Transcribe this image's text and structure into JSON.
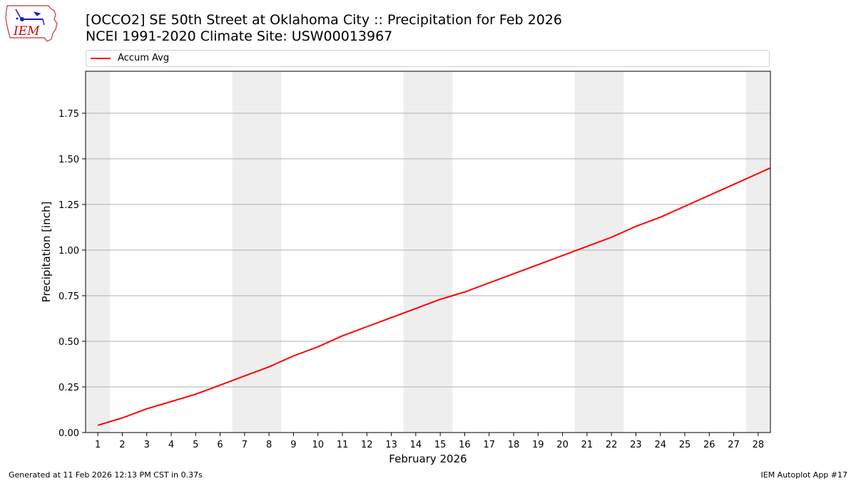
{
  "header": {
    "title_line1": "[OCCO2] SE 50th Street at Oklahoma City :: Precipitation for Feb 2026",
    "title_line2": "NCEI 1991-2020 Climate Site: USW00013967",
    "logo_text": "IEM"
  },
  "footer": {
    "left": "Generated at 11 Feb 2026 12:13 PM CST in 0.37s",
    "right": "IEM Autoplot App #17"
  },
  "chart_data": {
    "type": "line",
    "xlabel": "February 2026",
    "ylabel": "Precipitation [inch]",
    "xlim": [
      0.5,
      28.5
    ],
    "ylim": [
      0,
      1.98
    ],
    "x_ticks": [
      "1",
      "2",
      "3",
      "4",
      "5",
      "6",
      "7",
      "8",
      "9",
      "10",
      "11",
      "12",
      "13",
      "14",
      "15",
      "16",
      "17",
      "18",
      "19",
      "20",
      "21",
      "22",
      "23",
      "24",
      "25",
      "26",
      "27",
      "28"
    ],
    "y_ticks": [
      "0.00",
      "0.25",
      "0.50",
      "0.75",
      "1.00",
      "1.25",
      "1.50",
      "1.75"
    ],
    "grid": "horizontal",
    "legend_position": "top",
    "weekend_shading": [
      [
        0.5,
        1.5
      ],
      [
        6.5,
        8.5
      ],
      [
        13.5,
        15.5
      ],
      [
        20.5,
        22.5
      ],
      [
        27.5,
        28.5
      ]
    ],
    "series": [
      {
        "name": "Accum Avg",
        "color": "#ff0000",
        "x": [
          1,
          2,
          3,
          4,
          5,
          6,
          7,
          8,
          9,
          10,
          11,
          12,
          13,
          14,
          15,
          16,
          17,
          18,
          19,
          20,
          21,
          22,
          23,
          24,
          25,
          26,
          27,
          28,
          28.5
        ],
        "values": [
          0.04,
          0.08,
          0.13,
          0.17,
          0.21,
          0.26,
          0.31,
          0.36,
          0.42,
          0.47,
          0.53,
          0.58,
          0.63,
          0.68,
          0.73,
          0.77,
          0.82,
          0.87,
          0.92,
          0.97,
          1.02,
          1.07,
          1.13,
          1.18,
          1.24,
          1.3,
          1.36,
          1.42,
          1.45
        ]
      }
    ]
  },
  "colors": {
    "series": "#ff0000",
    "weekend_shade": "#eeeeee",
    "grid": "#b0b0b0",
    "logo_text": "#cc0000",
    "logo_outline": "#cc3333",
    "logo_glyph": "#1a1acc"
  }
}
